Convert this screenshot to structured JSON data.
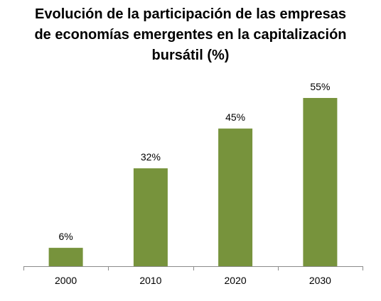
{
  "chart_data": {
    "type": "bar",
    "title_lines": [
      "Evolución de la participación de las empresas",
      "de economías emergentes en la capitalización",
      "bursátil (%)"
    ],
    "categories": [
      "2000",
      "2010",
      "2020",
      "2030"
    ],
    "values": [
      6,
      32,
      45,
      55
    ],
    "data_labels": [
      "6%",
      "32%",
      "45%",
      "55%"
    ],
    "value_suffix": "%",
    "ylim": [
      0,
      55
    ],
    "y_axis_visible": false,
    "grid": false,
    "legend": "none",
    "bar_color": "#77933c",
    "axis_color": "#8c8c8c"
  }
}
